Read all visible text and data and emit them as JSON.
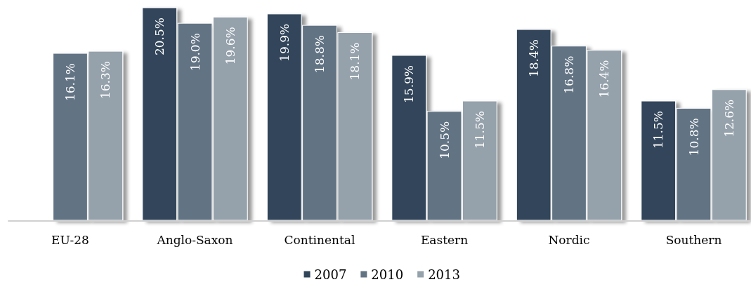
{
  "chart_data": {
    "type": "bar",
    "categories": [
      "EU-28",
      "Anglo-Saxon",
      "Continental",
      "Eastern",
      "Nordic",
      "Southern"
    ],
    "series": [
      {
        "name": "2007",
        "color": "#30455a",
        "values": [
          null,
          20.5,
          19.9,
          15.9,
          18.4,
          11.5
        ],
        "value_labels": [
          null,
          "20.5%",
          "19.9%",
          "15.9%",
          "18.4%",
          "11.5%"
        ]
      },
      {
        "name": "2010",
        "color": "#627384",
        "values": [
          16.1,
          19.0,
          18.8,
          10.5,
          16.8,
          10.8
        ],
        "value_labels": [
          "16.1%",
          "19.0%",
          "18.8%",
          "10.5%",
          "16.8%",
          "10.8%"
        ]
      },
      {
        "name": "2013",
        "color": "#95a1ab",
        "values": [
          16.3,
          19.6,
          18.1,
          11.5,
          16.4,
          12.6
        ],
        "value_labels": [
          "16.3%",
          "19.6%",
          "18.1%",
          "11.5%",
          "16.4%",
          "12.6%"
        ]
      }
    ],
    "legend": "bottom",
    "tick_labels": "x"
  }
}
